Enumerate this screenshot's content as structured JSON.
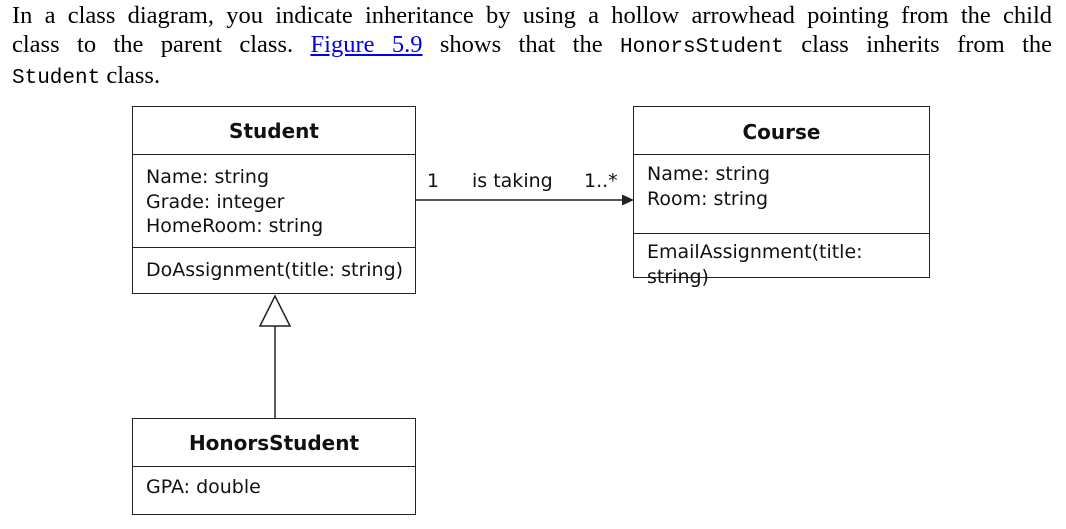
{
  "paragraph": {
    "l1": "In a class diagram, you indicate inheritance by using a hollow arrowhead pointing from the child",
    "l2_a": "class to the parent class.",
    "l2_link": "Figure 5.9",
    "l2_b": "shows that the",
    "l2_code": "HonorsStudent",
    "l2_c": "class inherits from the",
    "l3_code": "Student",
    "l3_b": "class."
  },
  "diagram": {
    "student": {
      "name": "Student",
      "attributes": [
        "Name: string",
        "Grade: integer",
        "HomeRoom: string"
      ],
      "methods": [
        "DoAssignment(title: string)"
      ]
    },
    "course": {
      "name": "Course",
      "attributes": [
        "Name: string",
        "Room: string"
      ],
      "methods": [
        "EmailAssignment(title: string)"
      ]
    },
    "honors": {
      "name": "HonorsStudent",
      "attributes": [
        "GPA: double"
      ]
    },
    "association": {
      "label": "is taking",
      "left_multiplicity": "1",
      "right_multiplicity": "1..*"
    }
  }
}
